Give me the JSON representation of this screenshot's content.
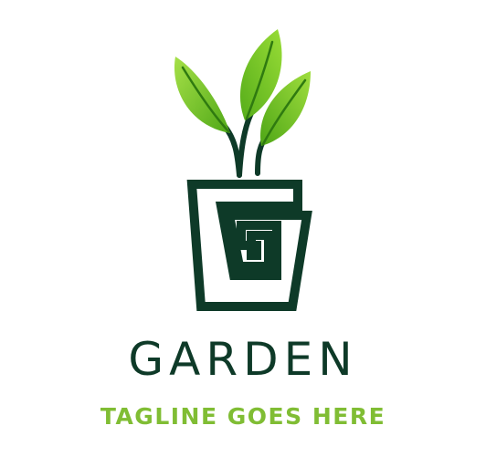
{
  "logo": {
    "brand_name": "GARDEN",
    "tagline": "TAGLINE GOES HERE",
    "icon": "plant-pot-icon"
  },
  "colors": {
    "dark_green": "#0e3a28",
    "leaf_light": "#9edd3c",
    "leaf_mid": "#6cc023",
    "leaf_dark": "#3f9a12",
    "tagline_green": "#80bd34",
    "background": "#ffffff"
  }
}
